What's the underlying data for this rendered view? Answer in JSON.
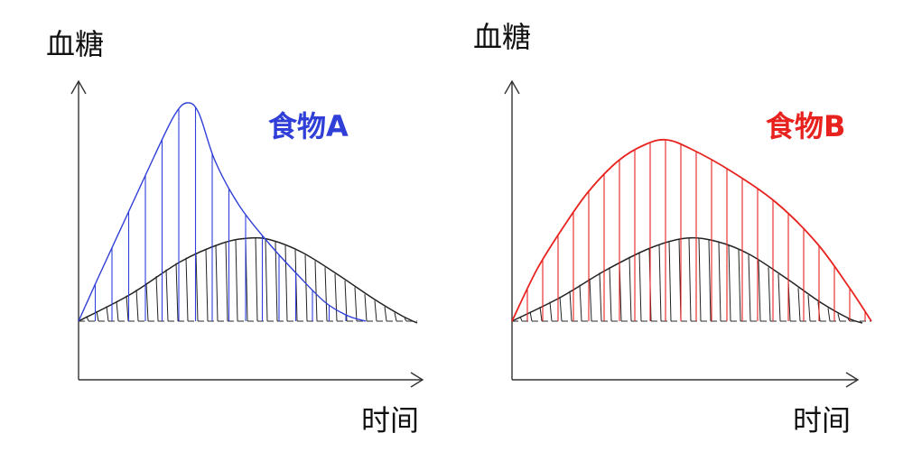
{
  "charts": [
    {
      "ylabel": "血糖",
      "xlabel": "时间",
      "food_label": "食物A",
      "color": "#2f3fd8",
      "reference_color": "#222222"
    },
    {
      "ylabel": "血糖",
      "xlabel": "时间",
      "food_label": "食物B",
      "color": "#e8231f",
      "reference_color": "#222222"
    }
  ]
}
